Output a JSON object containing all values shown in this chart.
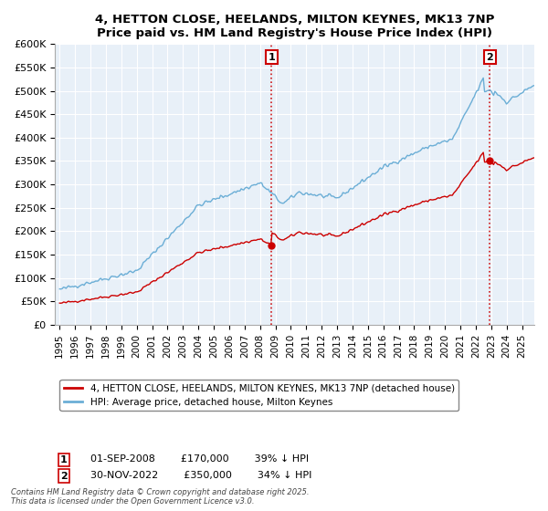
{
  "title": "4, HETTON CLOSE, HEELANDS, MILTON KEYNES, MK13 7NP",
  "subtitle": "Price paid vs. HM Land Registry's House Price Index (HPI)",
  "legend_line1": "4, HETTON CLOSE, HEELANDS, MILTON KEYNES, MK13 7NP (detached house)",
  "legend_line2": "HPI: Average price, detached house, Milton Keynes",
  "footnote": "Contains HM Land Registry data © Crown copyright and database right 2025.\nThis data is licensed under the Open Government Licence v3.0.",
  "ann1_label": "1",
  "ann1_x": 2008.75,
  "ann1_y": 170000,
  "ann2_label": "2",
  "ann2_x": 2022.92,
  "ann2_y": 350000,
  "table1": "01-SEP-2008     £170,000     39% ↓ HPI",
  "table2": "30-NOV-2022     £350,000     34% ↓ HPI",
  "hpi_color": "#6baed6",
  "price_color": "#cc0000",
  "plot_bg_color": "#e8f0f8",
  "background_color": "#ffffff",
  "grid_color": "#ffffff",
  "ylim": [
    0,
    600000
  ],
  "yticks": [
    0,
    50000,
    100000,
    150000,
    200000,
    250000,
    300000,
    350000,
    400000,
    450000,
    500000,
    550000,
    600000
  ],
  "ytick_labels": [
    "£0",
    "£50K",
    "£100K",
    "£150K",
    "£200K",
    "£250K",
    "£300K",
    "£350K",
    "£400K",
    "£450K",
    "£500K",
    "£550K",
    "£600K"
  ],
  "xlim_start": 1994.7,
  "xlim_end": 2025.8
}
